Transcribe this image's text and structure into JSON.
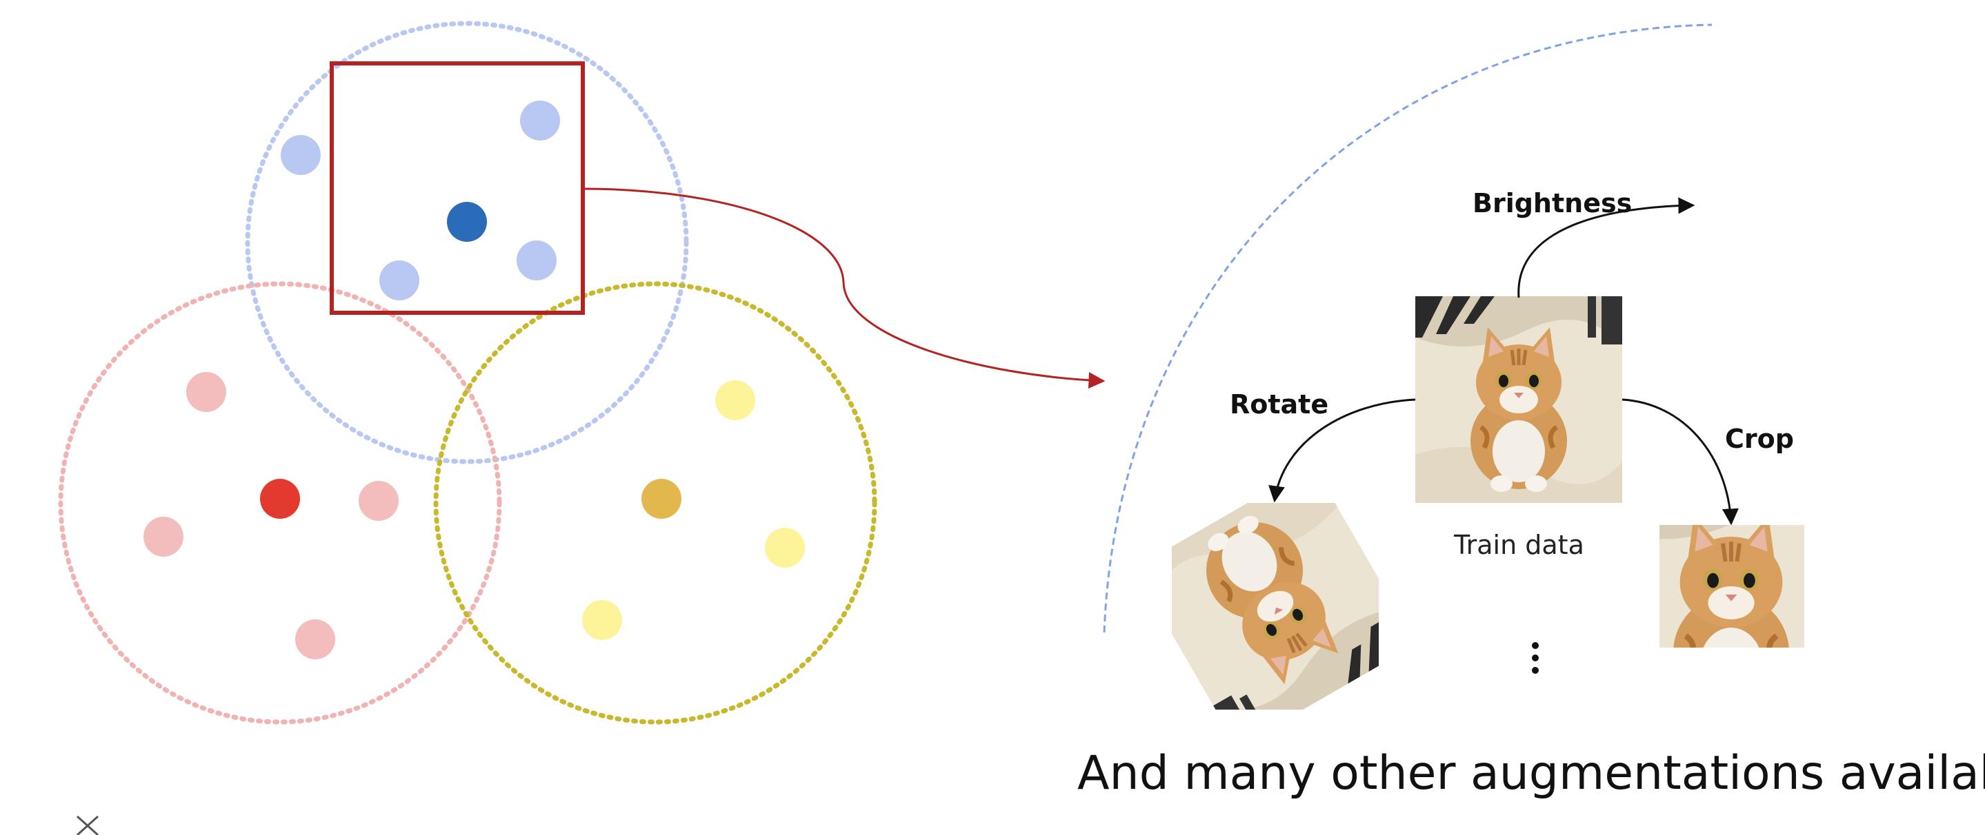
{
  "labels": {
    "brightness": "Brightness",
    "rotate": "Rotate",
    "crop": "Crop",
    "train_data": "Train data",
    "more_ellipsis": "⋮",
    "caption": "And many other augmentations available!"
  },
  "close_glyph": "×",
  "colors": {
    "blue_cluster": "#b9c8f2",
    "blue_center": "#2b6cb8",
    "red_cluster": "#f1b2b2",
    "red_center": "#e23a2f",
    "yellow_cluster": "#c8b92c",
    "yellow_point": "#fdf49a",
    "yellow_center": "#e2b84e",
    "highlight_box": "#b52222",
    "arc": "#7fa3e6",
    "arrow": "#111111"
  },
  "icons": {
    "cat_photo": "cat-photo",
    "close": "close-icon"
  }
}
